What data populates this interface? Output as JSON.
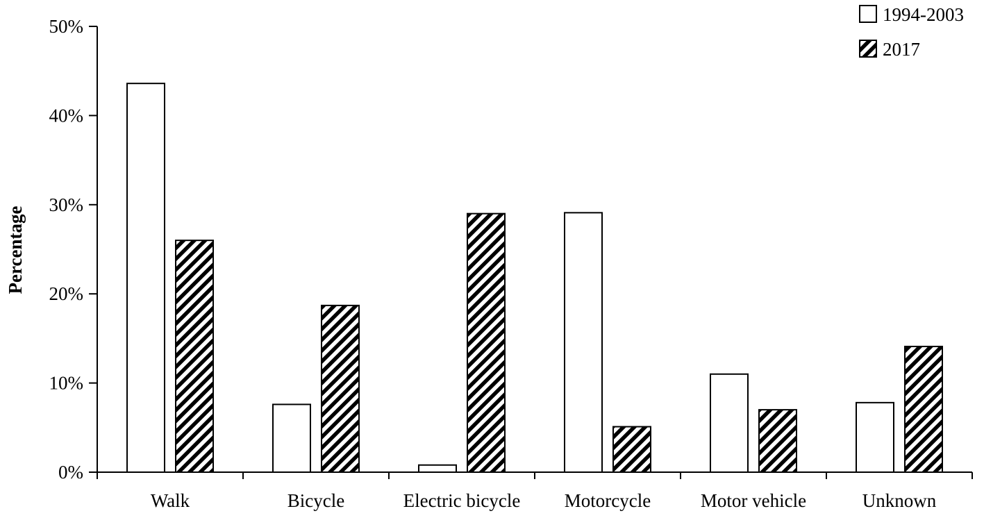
{
  "chart_data": {
    "type": "bar",
    "title": "",
    "xlabel": "",
    "ylabel": "Percentage",
    "ylim": [
      0,
      50
    ],
    "y_ticks": [
      "0%",
      "10%",
      "20%",
      "30%",
      "40%",
      "50%"
    ],
    "categories": [
      "Walk",
      "Bicycle",
      "Electric bicycle",
      "Motorcycle",
      "Motor vehicle",
      "Unknown"
    ],
    "series": [
      {
        "name": "1994-2003",
        "values": [
          43.6,
          7.6,
          0.8,
          29.1,
          11.0,
          7.8
        ],
        "pattern": "hollow"
      },
      {
        "name": "2017",
        "values": [
          26.0,
          18.7,
          29.0,
          5.1,
          7.0,
          14.1
        ],
        "pattern": "diagonal-stripes"
      }
    ],
    "legend_position": "top-right",
    "grid": false
  }
}
